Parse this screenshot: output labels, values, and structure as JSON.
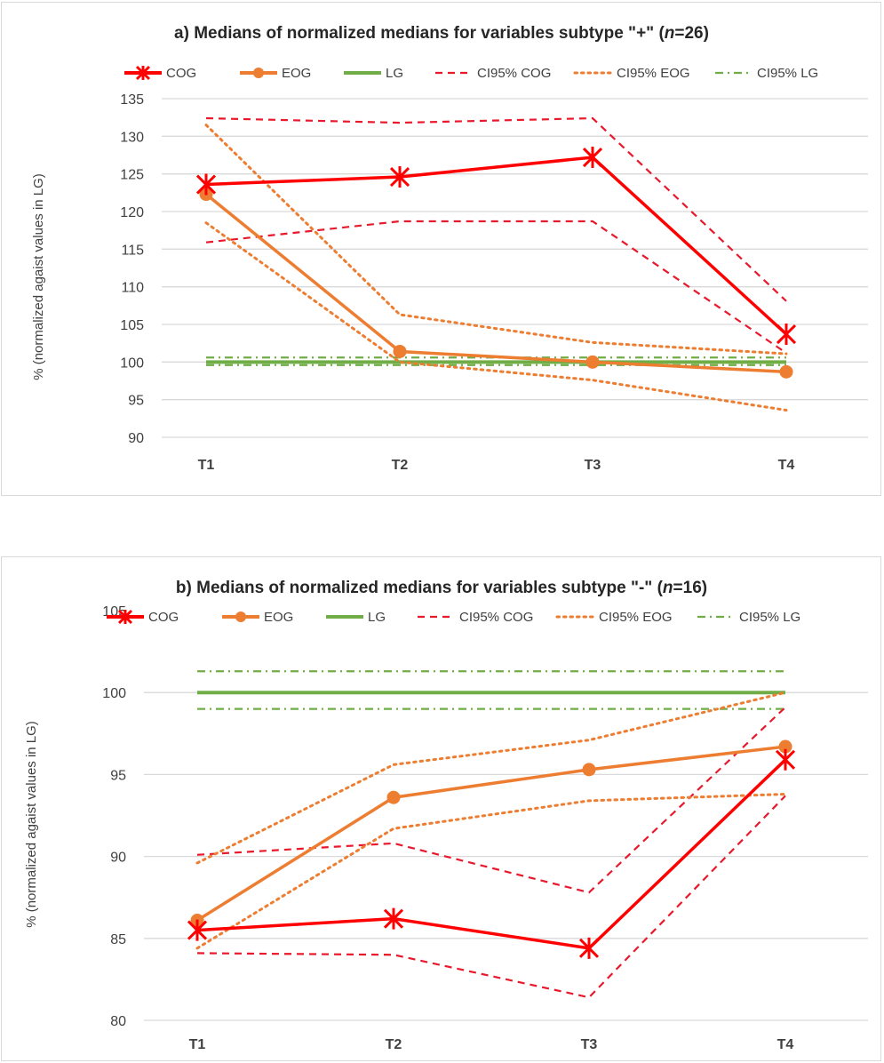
{
  "chart_data": [
    {
      "id": "a",
      "type": "line",
      "title_prefix": "a) Medians of normalized medians for variables subtype \"+\" (",
      "title_n_label": "n",
      "title_suffix": "=26)",
      "xlabel": "",
      "ylabel": "% (normalized agaist values in LG)",
      "categories": [
        "T1",
        "T2",
        "T3",
        "T4"
      ],
      "ylim": [
        90,
        135
      ],
      "yticks": [
        90,
        95,
        100,
        105,
        110,
        115,
        120,
        125,
        130,
        135
      ],
      "grid": true,
      "legend_position": "top",
      "series": [
        {
          "name": "COG",
          "style": "solid-star",
          "color": "#ff0000",
          "values": [
            123.6,
            124.6,
            127.2,
            103.7
          ]
        },
        {
          "name": "EOG",
          "style": "solid-circle",
          "color": "#ed7d31",
          "values": [
            122.3,
            101.4,
            100.0,
            98.7
          ]
        },
        {
          "name": "LG",
          "style": "solid",
          "color": "#70ad47",
          "values": [
            100,
            100,
            100,
            100
          ]
        },
        {
          "name": "CI95% COG",
          "style": "dashed",
          "color": "#e8192c",
          "upper": [
            132.4,
            131.8,
            132.4,
            108.1
          ],
          "lower": [
            115.9,
            118.7,
            118.7,
            101.2
          ]
        },
        {
          "name": "CI95% EOG",
          "style": "dotted",
          "color": "#ed7d31",
          "upper": [
            131.5,
            106.3,
            102.6,
            101.1
          ],
          "lower": [
            118.5,
            100.0,
            97.6,
            93.6
          ]
        },
        {
          "name": "CI95% LG",
          "style": "dashdot",
          "color": "#70ad47",
          "upper": [
            100.6,
            100.6,
            100.6,
            100.6
          ],
          "lower": [
            99.6,
            99.6,
            99.6,
            99.6
          ]
        }
      ]
    },
    {
      "id": "b",
      "type": "line",
      "title_prefix": "b) Medians of normalized medians for variables subtype \"-\" (",
      "title_n_label": "n",
      "title_suffix": "=16)",
      "xlabel": "",
      "ylabel": "% (normalized agaist values in LG)",
      "categories": [
        "T1",
        "T2",
        "T3",
        "T4"
      ],
      "ylim": [
        80,
        105
      ],
      "yticks": [
        80,
        85,
        90,
        95,
        100,
        105
      ],
      "grid": true,
      "legend_position": "top",
      "series": [
        {
          "name": "COG",
          "style": "solid-star",
          "color": "#ff0000",
          "values": [
            85.5,
            86.2,
            84.4,
            95.9
          ]
        },
        {
          "name": "EOG",
          "style": "solid-circle",
          "color": "#ed7d31",
          "values": [
            86.1,
            93.6,
            95.3,
            96.7
          ]
        },
        {
          "name": "LG",
          "style": "solid",
          "color": "#70ad47",
          "values": [
            100,
            100,
            100,
            100
          ]
        },
        {
          "name": "CI95% COG",
          "style": "dashed",
          "color": "#e8192c",
          "upper": [
            90.1,
            90.8,
            87.8,
            99.1
          ],
          "lower": [
            84.1,
            84.0,
            81.4,
            93.7
          ]
        },
        {
          "name": "CI95% EOG",
          "style": "dotted",
          "color": "#ed7d31",
          "upper": [
            89.6,
            95.6,
            97.1,
            100.0
          ],
          "lower": [
            84.4,
            91.7,
            93.4,
            93.8
          ]
        },
        {
          "name": "CI95% LG",
          "style": "dashdot",
          "color": "#70ad47",
          "upper": [
            101.3,
            101.3,
            101.3,
            101.3
          ],
          "lower": [
            99.0,
            99.0,
            99.0,
            99.0
          ]
        }
      ]
    }
  ]
}
